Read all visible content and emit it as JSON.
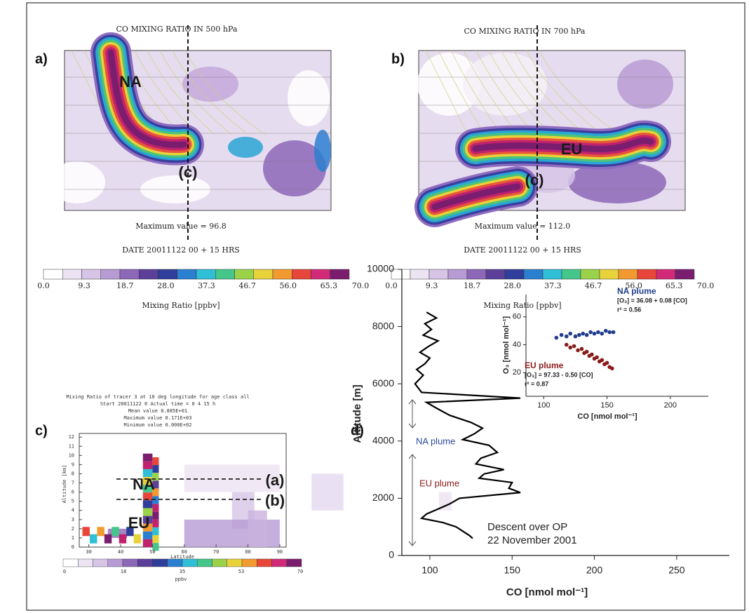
{
  "figure": {
    "panel_a": {
      "label": "a)",
      "title": "CO MIXING RATIO IN 500 hPa",
      "plume_label": "NA",
      "section_label": "(c)",
      "max_value": "Maximum value =  96.8",
      "date": "DATE 20011122   00 +   15  HRS",
      "colorbar": {
        "ticks": [
          "0.0",
          "9.3",
          "18.7",
          "28.0",
          "37.3",
          "46.7",
          "56.0",
          "65.3",
          "70.0"
        ],
        "label": "Mixing Ratio [ppbv]"
      }
    },
    "panel_b": {
      "label": "b)",
      "title": "CO MIXING RATIO IN 700 hPa",
      "plume_label": "EU",
      "section_label": "(c)",
      "max_value": "Maximum value = 112.0",
      "date": "DATE 20011122   00 +   15  HRS",
      "colorbar": {
        "ticks": [
          "0.0",
          "9.3",
          "18.7",
          "28.0",
          "37.3",
          "46.7",
          "56.0",
          "65.3",
          "70.0"
        ],
        "label": "Mixing Ratio [ppbv]"
      }
    },
    "panel_c": {
      "label": "c)",
      "header": [
        "Mixing Ratio of tracer  3 at   10 deg longitude for age class all",
        "Start 20011122   0   Actual time  =  0 4  15 h",
        "Mean value    0.885E+01",
        "Maximum value   0.171E+03",
        "Minimum value   0.000E+02"
      ],
      "ylabel": "Altitude [km]",
      "xlabel": "Latitude",
      "ylim": [
        0,
        12.4
      ],
      "yticks": [
        0,
        1,
        2,
        3,
        4,
        5,
        6,
        7,
        8,
        9,
        10,
        11,
        12
      ],
      "xlim": [
        27,
        92
      ],
      "xticks": [
        30,
        40,
        50,
        60,
        70,
        80,
        90
      ],
      "plume_labels": [
        "NA",
        "EU"
      ],
      "level_labels": [
        "(a)",
        "(b)"
      ],
      "colorbar": {
        "ticks": [
          "0",
          "18",
          "35",
          "53",
          "70"
        ],
        "label": "ppbv"
      }
    },
    "panel_d": {
      "label": "d)",
      "chart_data": {
        "type": "line",
        "xlabel": "CO [nmol mol⁻¹]",
        "ylabel": "Altitude [m]",
        "xlim": [
          83,
          282
        ],
        "xticks": [
          100,
          150,
          200,
          250
        ],
        "ylim": [
          0,
          10000
        ],
        "yticks": [
          0,
          2000,
          4000,
          6000,
          8000,
          10000
        ],
        "series": [
          {
            "color": "#000000",
            "x": [
              98,
              104,
              97,
              101,
              96,
              105,
              99,
              94,
              100,
              97,
              92,
              96,
              91,
              95,
              155,
              98,
              104,
              112,
              125,
              132,
              127,
              120,
              136,
              141,
              131,
              128,
              145,
              133,
              130,
              150,
              148,
              155,
              118,
              112,
              104,
              98,
              95,
              108,
              116,
              120,
              124,
              126
            ],
            "values": [
              8500,
              8300,
              8100,
              7900,
              7700,
              7500,
              7300,
              7100,
              6900,
              6700,
              6500,
              6300,
              6000,
              5700,
              5500,
              5350,
              5150,
              4900,
              4650,
              4450,
              4250,
              4050,
              3850,
              3600,
              3400,
              3200,
              3000,
              2850,
              2700,
              2550,
              2350,
              2200,
              2000,
              1800,
              1600,
              1450,
              1300,
              1150,
              1000,
              850,
              700,
              600
            ]
          }
        ],
        "annotations": {
          "na_plume": "NA plume",
          "eu_plume": "EU plume",
          "descent": "Descent over OP",
          "date": "22 November 2001"
        }
      },
      "inset": {
        "type": "scatter",
        "xlabel": "CO [nmol mol⁻¹]",
        "ylabel": "O₃ [nmol mol⁻¹]",
        "xlim": [
          86,
          230
        ],
        "xticks": [
          100,
          150,
          200
        ],
        "ylim": [
          3,
          76
        ],
        "yticks": [
          20,
          40,
          60
        ],
        "series": [
          {
            "name": "NA plume",
            "color": "#1f3d8c",
            "equation": "[O₃] = 36.08 + 0.08 [CO]",
            "r2": "r² = 0.56",
            "x": [
              110,
              114,
              118,
              121,
              125,
              128,
              131,
              134,
              137,
              140,
              143,
              146,
              149,
              152,
              155
            ],
            "values": [
              45,
              47,
              46,
              48,
              46,
              47,
              48,
              47,
              49,
              48,
              49,
              48,
              50,
              49,
              49
            ]
          },
          {
            "name": "EU plume",
            "color": "#8b1a1a",
            "equation": "[O₃] = 97.33 - 0.50 [CO]",
            "r2": "r² = 0.87",
            "x": [
              118,
              121,
              124,
              127,
              130,
              132,
              134,
              136,
              138,
              140,
              142,
              144,
              146,
              148,
              150,
              152,
              154
            ],
            "values": [
              40,
              38,
              39,
              36,
              37,
              34,
              35,
              32,
              33,
              30,
              31,
              28,
              29,
              26,
              27,
              24,
              23
            ]
          }
        ]
      }
    }
  }
}
